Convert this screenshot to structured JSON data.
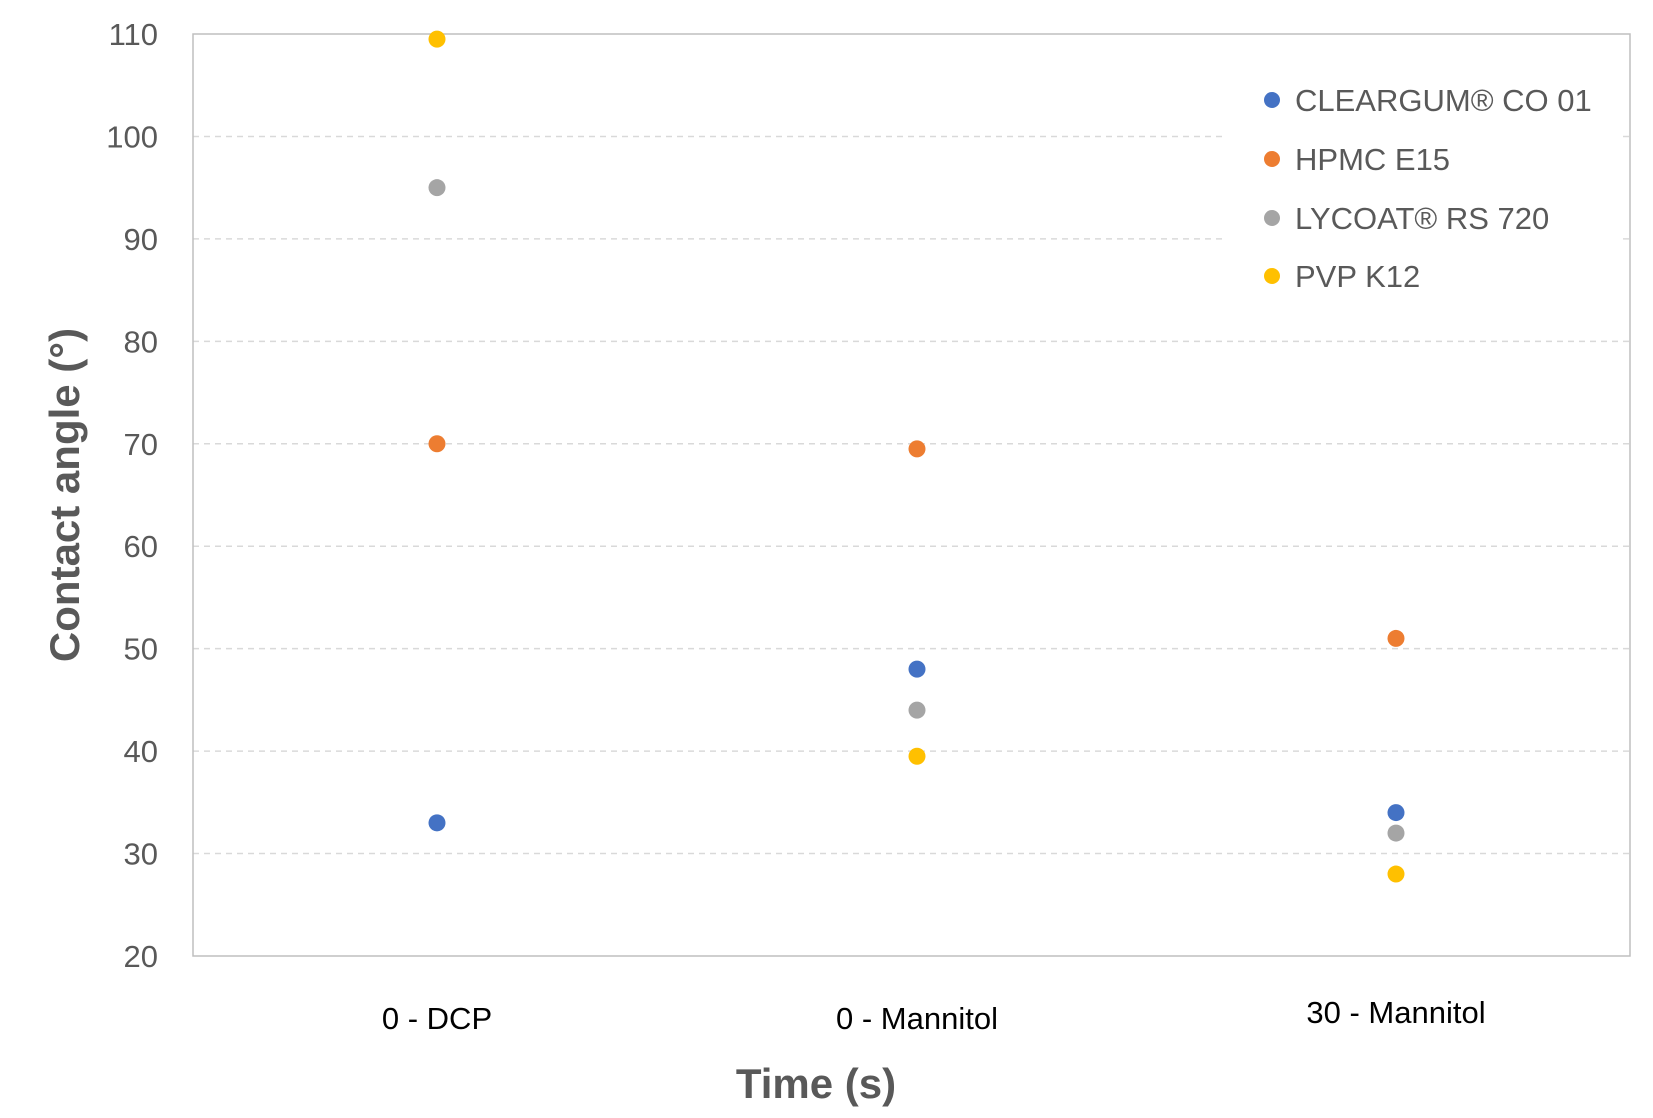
{
  "chart_data": {
    "type": "scatter",
    "title": "",
    "xlabel": "Time (s)",
    "ylabel": "Contact angle (°)",
    "ylim": [
      20,
      110
    ],
    "yticks": [
      20,
      30,
      40,
      50,
      60,
      70,
      80,
      90,
      100,
      110
    ],
    "grid": true,
    "legend_position": "top-right",
    "categories": [
      "0 - DCP",
      "0 - Mannitol",
      "30 - Mannitol"
    ],
    "series": [
      {
        "name": "CLEARGUM® CO 01",
        "color": "#4472C4",
        "values": [
          33,
          48,
          34
        ]
      },
      {
        "name": "HPMC E15",
        "color": "#ED7D31",
        "values": [
          70,
          69.5,
          51
        ]
      },
      {
        "name": "LYCOAT® RS 720",
        "color": "#A5A5A5",
        "values": [
          95,
          44,
          32
        ]
      },
      {
        "name": "PVP K12",
        "color": "#FFC000",
        "values": [
          109.5,
          39.5,
          28
        ]
      }
    ]
  }
}
